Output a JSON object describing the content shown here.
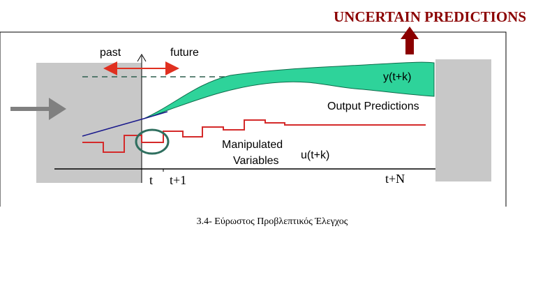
{
  "title": "UNCERTAIN PREDICTIONS",
  "labels": {
    "past": "past",
    "future": "future",
    "output": "y(t+k)",
    "output_caption": "Output Predictions",
    "manipulated_line1": "Manipulated",
    "manipulated_line2": "Variables",
    "input": "u(t+k)"
  },
  "axis": {
    "t": "t",
    "t1": "t+1",
    "tN": "t+N"
  },
  "caption": "3.4- Εύρωστος Προβλεπτικός Έλεγχος"
}
